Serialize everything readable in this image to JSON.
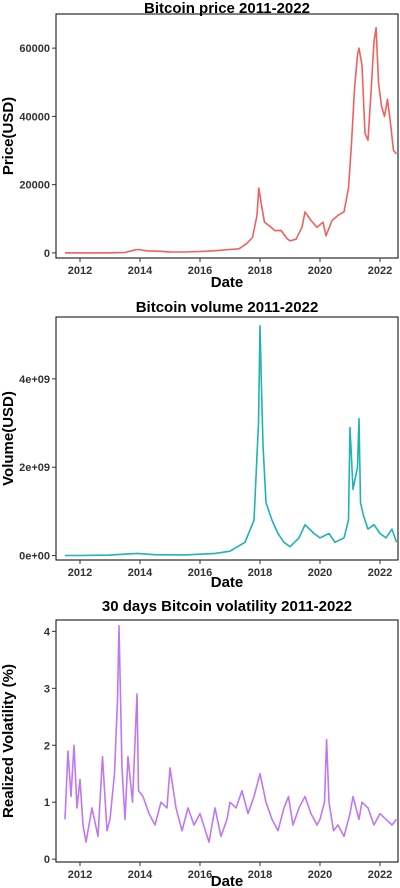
{
  "chart_data": [
    {
      "type": "line",
      "title": "Bitcoin price 2011-2022",
      "xlabel": "Date",
      "ylabel": "Price(USD)",
      "color": "#F0605D",
      "xlim": [
        2011.2,
        2022.6
      ],
      "ylim": [
        -1500,
        70000
      ],
      "x_ticks": [
        2012,
        2014,
        2016,
        2018,
        2020,
        2022
      ],
      "x_tick_labels": [
        "2012",
        "2014",
        "2016",
        "2018",
        "2020",
        "2022"
      ],
      "y_ticks": [
        0,
        20000,
        40000,
        60000
      ],
      "y_tick_labels": [
        "0",
        "20000",
        "40000",
        "60000"
      ],
      "series": [
        {
          "x": [
            2011.5,
            2012.0,
            2012.5,
            2013.0,
            2013.5,
            2013.85,
            2013.95,
            2014.2,
            2014.6,
            2015.0,
            2015.5,
            2016.0,
            2016.5,
            2017.0,
            2017.3,
            2017.55,
            2017.75,
            2017.9,
            2017.96,
            2018.05,
            2018.15,
            2018.3,
            2018.5,
            2018.7,
            2018.9,
            2019.0,
            2019.2,
            2019.4,
            2019.5,
            2019.7,
            2019.9,
            2020.1,
            2020.2,
            2020.4,
            2020.6,
            2020.8,
            2020.95,
            2021.05,
            2021.15,
            2021.25,
            2021.3,
            2021.4,
            2021.5,
            2021.6,
            2021.7,
            2021.8,
            2021.87,
            2021.95,
            2022.05,
            2022.15,
            2022.25,
            2022.35,
            2022.45,
            2022.55
          ],
          "y": [
            10,
            6,
            7,
            15,
            100,
            900,
            1000,
            600,
            500,
            300,
            250,
            400,
            650,
            1000,
            1200,
            2700,
            4500,
            11000,
            19000,
            14000,
            9000,
            8000,
            6500,
            6600,
            4200,
            3500,
            4000,
            7500,
            12000,
            9500,
            7500,
            9000,
            5000,
            9500,
            11000,
            12000,
            19000,
            32000,
            48000,
            58000,
            60000,
            55000,
            35000,
            33000,
            47000,
            62000,
            66000,
            50000,
            43000,
            40000,
            45000,
            38000,
            30000,
            29000
          ]
        }
      ]
    },
    {
      "type": "line",
      "title": "Bitcoin volume 2011-2022",
      "xlabel": "Date",
      "ylabel": "Volume(USD)",
      "color": "#1FB3B3",
      "xlim": [
        2011.2,
        2022.6
      ],
      "ylim": [
        -100000000.0,
        5400000000.0
      ],
      "x_ticks": [
        2012,
        2014,
        2016,
        2018,
        2020,
        2022
      ],
      "x_tick_labels": [
        "2012",
        "2014",
        "2016",
        "2018",
        "2020",
        "2022"
      ],
      "y_ticks": [
        0,
        2000000000,
        4000000000
      ],
      "y_tick_labels": [
        "0e+00",
        "2e+09",
        "4e+09"
      ],
      "series": [
        {
          "x": [
            2011.5,
            2012.0,
            2013.0,
            2013.9,
            2014.5,
            2015.5,
            2016.5,
            2017.0,
            2017.5,
            2017.8,
            2017.95,
            2018.0,
            2018.05,
            2018.1,
            2018.2,
            2018.4,
            2018.6,
            2018.8,
            2019.0,
            2019.3,
            2019.5,
            2019.8,
            2020.0,
            2020.3,
            2020.5,
            2020.8,
            2020.95,
            2021.0,
            2021.1,
            2021.25,
            2021.3,
            2021.35,
            2021.45,
            2021.6,
            2021.8,
            2022.0,
            2022.2,
            2022.4,
            2022.55
          ],
          "y": [
            1000000,
            2000000,
            10000000,
            50000000,
            20000000,
            15000000,
            50000000,
            100000000,
            300000000,
            800000000,
            3000000000,
            5200000000,
            3800000000,
            2500000000,
            1200000000,
            800000000,
            500000000,
            300000000,
            200000000,
            400000000,
            700000000,
            500000000,
            400000000,
            500000000,
            300000000,
            400000000,
            800000000,
            2900000000,
            1500000000,
            2000000000,
            3100000000,
            1200000000,
            900000000,
            600000000,
            700000000,
            500000000,
            400000000,
            600000000,
            300000000
          ]
        }
      ]
    },
    {
      "type": "line",
      "title": "30 days Bitcoin volatility 2011-2022",
      "xlabel": "Date",
      "ylabel": "Realized Volatility (%)",
      "color": "#C077F2",
      "xlim": [
        2011.2,
        2022.6
      ],
      "ylim": [
        -0.05,
        4.2
      ],
      "x_ticks": [
        2012,
        2014,
        2016,
        2018,
        2020,
        2022
      ],
      "x_tick_labels": [
        "2012",
        "2014",
        "2016",
        "2018",
        "2020",
        "2022"
      ],
      "y_ticks": [
        0,
        1,
        2,
        3,
        4
      ],
      "y_tick_labels": [
        "0",
        "1",
        "2",
        "3",
        "4"
      ],
      "series": [
        {
          "x": [
            2011.5,
            2011.6,
            2011.7,
            2011.8,
            2011.9,
            2012.0,
            2012.1,
            2012.2,
            2012.4,
            2012.6,
            2012.75,
            2012.9,
            2013.0,
            2013.15,
            2013.25,
            2013.3,
            2013.4,
            2013.5,
            2013.6,
            2013.75,
            2013.9,
            2013.95,
            2014.1,
            2014.3,
            2014.5,
            2014.7,
            2014.9,
            2015.0,
            2015.2,
            2015.4,
            2015.6,
            2015.8,
            2016.0,
            2016.3,
            2016.5,
            2016.7,
            2016.9,
            2017.0,
            2017.2,
            2017.4,
            2017.6,
            2017.8,
            2018.0,
            2018.2,
            2018.4,
            2018.6,
            2018.8,
            2018.95,
            2019.1,
            2019.3,
            2019.5,
            2019.7,
            2019.9,
            2020.0,
            2020.15,
            2020.22,
            2020.3,
            2020.45,
            2020.6,
            2020.8,
            2021.0,
            2021.1,
            2021.3,
            2021.4,
            2021.6,
            2021.8,
            2022.0,
            2022.2,
            2022.4,
            2022.55
          ],
          "y": [
            0.7,
            1.9,
            1.1,
            2.0,
            0.9,
            1.4,
            0.6,
            0.3,
            0.9,
            0.4,
            1.8,
            0.5,
            0.7,
            1.5,
            2.8,
            4.1,
            1.6,
            0.7,
            1.8,
            1.0,
            2.9,
            1.2,
            1.1,
            0.8,
            0.6,
            1.0,
            0.9,
            1.6,
            0.9,
            0.5,
            0.9,
            0.6,
            0.8,
            0.3,
            0.9,
            0.4,
            0.7,
            1.0,
            0.9,
            1.2,
            0.8,
            1.1,
            1.5,
            1.0,
            0.7,
            0.5,
            0.9,
            1.1,
            0.6,
            0.9,
            1.1,
            0.8,
            0.6,
            0.7,
            1.0,
            2.1,
            1.0,
            0.5,
            0.6,
            0.4,
            0.8,
            1.1,
            0.7,
            1.0,
            0.9,
            0.6,
            0.8,
            0.7,
            0.6,
            0.7
          ]
        }
      ]
    }
  ]
}
